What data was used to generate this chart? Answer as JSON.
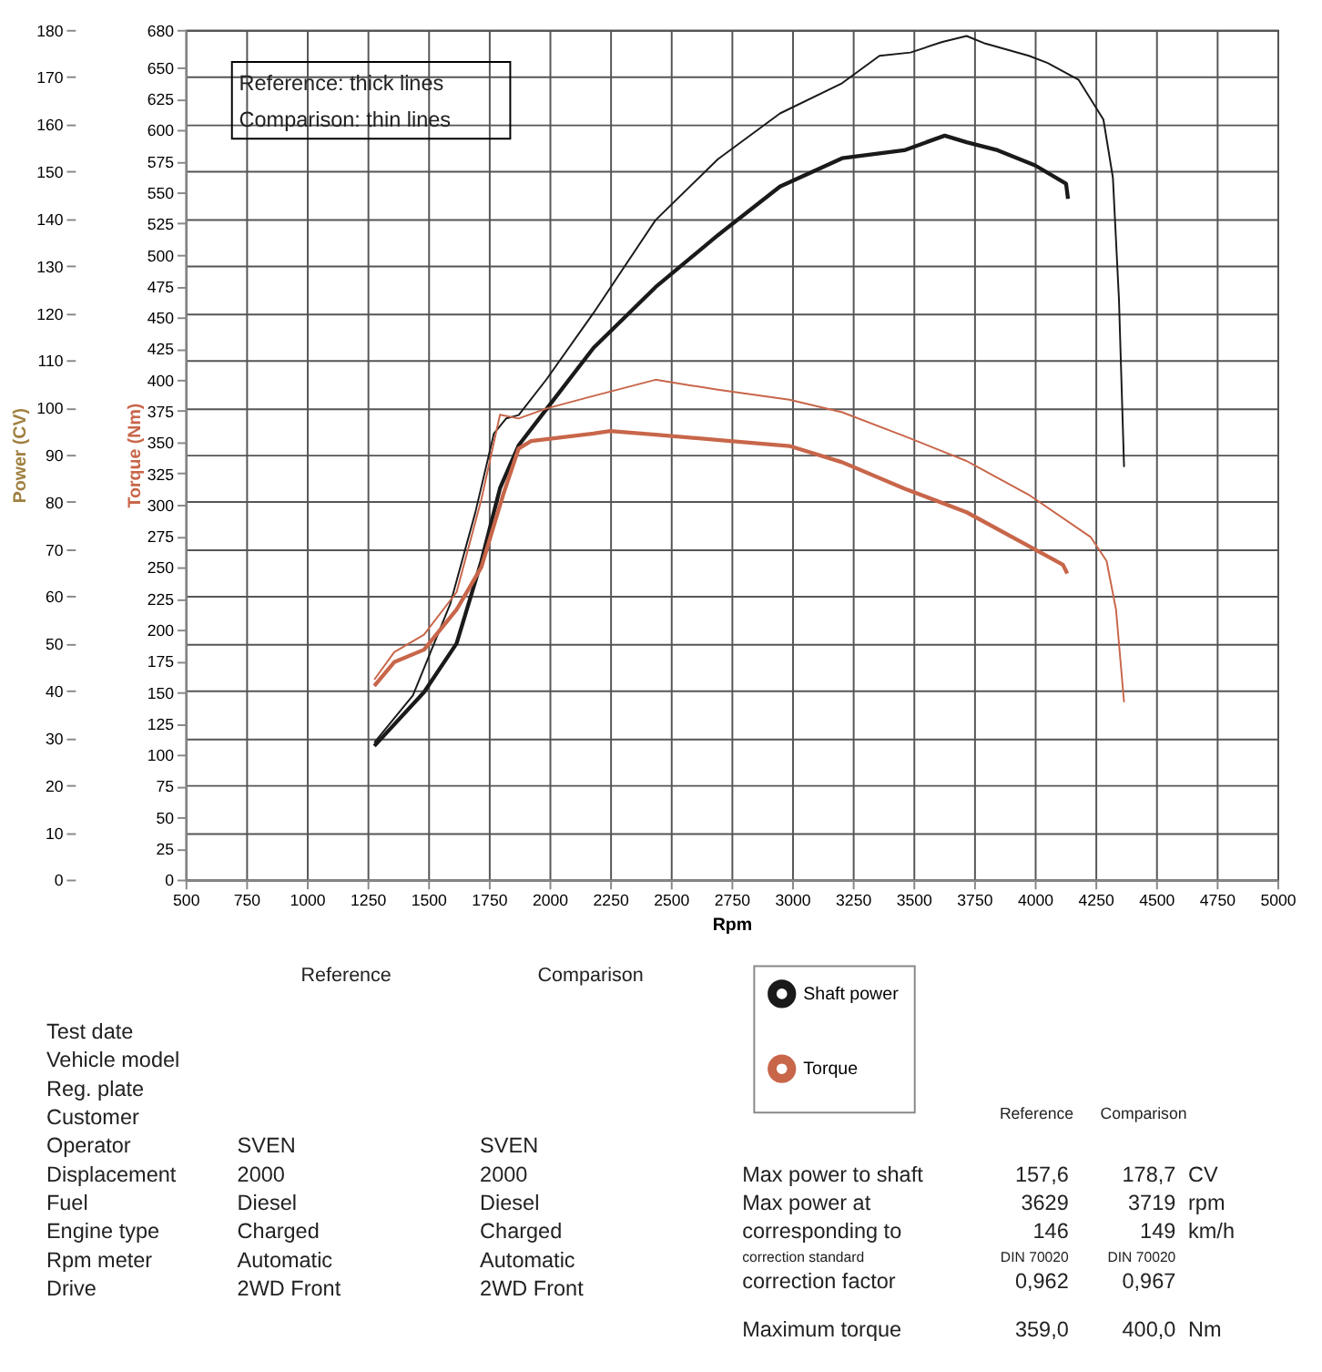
{
  "chart_data": {
    "type": "line",
    "xlabel": "Rpm",
    "ylabel": "Power (CV)",
    "y2label": "Torque (Nm)",
    "xlim": [
      500,
      5000
    ],
    "xticks": [
      500,
      750,
      1000,
      1250,
      1500,
      1750,
      2000,
      2250,
      2500,
      2750,
      3000,
      3250,
      3500,
      3750,
      4000,
      4250,
      4500,
      4750,
      5000
    ],
    "ylim": [
      0,
      180
    ],
    "yticks": [
      0,
      10,
      20,
      30,
      40,
      50,
      60,
      70,
      80,
      90,
      100,
      110,
      120,
      130,
      140,
      150,
      160,
      170,
      180
    ],
    "y2lim": [
      0,
      680
    ],
    "y2ticks": [
      0,
      25,
      50,
      75,
      100,
      125,
      150,
      175,
      200,
      225,
      250,
      275,
      300,
      325,
      350,
      375,
      400,
      425,
      450,
      475,
      500,
      525,
      550,
      575,
      600,
      625,
      650,
      680
    ],
    "grid": true,
    "legend": "bottom",
    "line_style": "solid",
    "series": [
      {
        "name": "Shaft power",
        "color": "#1a1a1a",
        "x": [
          1278,
          1483,
          1617,
          1719,
          1796,
          1873,
          1988,
          2181,
          2437,
          2694,
          2950,
          3206,
          3462,
          3629,
          3719,
          3847,
          4001,
          4129,
          4137
        ],
        "values": [
          28.3,
          39.7,
          50,
          67.4,
          82.9,
          92,
          99.7,
          112.6,
          125.5,
          136.5,
          146.8,
          152.8,
          154.5,
          157.6,
          156.2,
          154.5,
          151.3,
          147.4,
          144.2
        ]
      },
      {
        "color": "#1a1a1a",
        "x": [
          1278,
          1437,
          1591,
          1694,
          1771,
          1822,
          1873,
          1988,
          2181,
          2437,
          2694,
          2950,
          3206,
          3360,
          3488,
          3616,
          3719,
          3796,
          3976,
          4053,
          4181,
          4283,
          4322,
          4347,
          4368
        ],
        "values": [
          29,
          39,
          58.4,
          77.7,
          94.5,
          97.7,
          98.4,
          106,
          120,
          139.7,
          152.6,
          162.3,
          168.7,
          174.5,
          175.2,
          177.4,
          178.7,
          177.1,
          174.5,
          173,
          169.4,
          161,
          148.7,
          122.9,
          87.4
        ]
      },
      {
        "name": "Torque",
        "color": "#c8664a",
        "axis": "y2",
        "x": [
          1278,
          1360,
          1483,
          1617,
          1719,
          1809,
          1873,
          1924,
          2181,
          2250,
          2437,
          2745,
          2989,
          3206,
          3462,
          3719,
          3975,
          4116,
          4134
        ],
        "values": [
          155,
          174,
          184,
          216,
          250,
          308,
          345,
          351,
          357,
          359,
          356,
          351,
          347,
          334,
          313,
          294,
          267,
          252,
          245
        ]
      },
      {
        "color": "#c8664a",
        "axis": "y2",
        "x": [
          1278,
          1360,
          1483,
          1617,
          1719,
          1796,
          1873,
          1988,
          2181,
          2437,
          2694,
          2989,
          3206,
          3462,
          3719,
          3975,
          4231,
          4296,
          4335,
          4368
        ],
        "values": [
          160,
          182,
          196,
          230,
          304,
          372,
          369,
          377,
          387,
          400,
          392,
          384,
          374,
          355,
          335,
          308,
          274,
          255,
          216,
          142
        ]
      }
    ],
    "annotations": [
      "Reference: thick lines",
      "Comparison: thin lines",
      "Reference",
      "Comparison",
      "Test date",
      "Vehicle model",
      "Reg. plate",
      "Customer",
      "Operator",
      "Displacement",
      "Fuel",
      "Engine type",
      "Rpm meter",
      "Drive",
      "SVEN",
      "2000",
      "Diesel",
      "Charged",
      "Automatic",
      "2WD Front",
      "SVEN",
      "2000",
      "Diesel",
      "Charged",
      "Automatic",
      "2WD Front",
      "Reference",
      "Comparison",
      "Max power to shaft",
      "Max power at",
      "corresponding to",
      "correction standard",
      "correction factor",
      "Maximum torque",
      "157,6",
      "3629",
      "146",
      "DIN 70020",
      "0,962",
      "359,0",
      "178,7",
      "3719",
      "149",
      "DIN 70020",
      "0,967",
      "400,0",
      "CV",
      "rpm",
      "km/h",
      "Nm"
    ]
  }
}
